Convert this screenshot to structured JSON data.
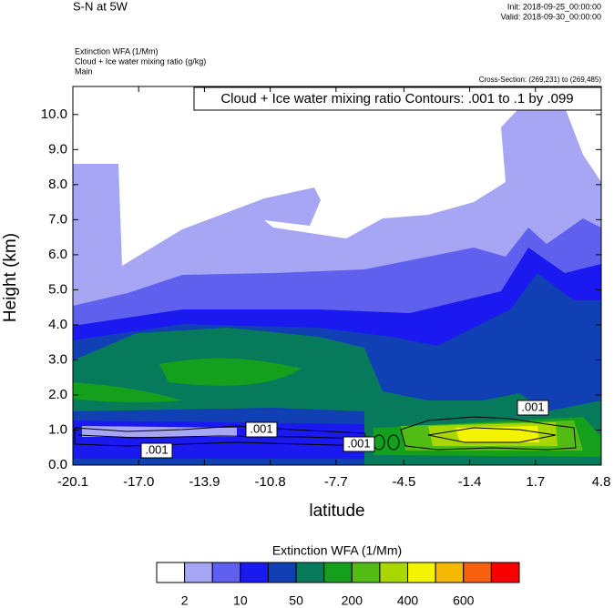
{
  "chart_data": {
    "type": "contour",
    "title": "S-N at 5W",
    "init": "Init: 2018-09-25_00:00:00",
    "valid": "Valid: 2018-09-30_00:00:00",
    "subtitle_lines": [
      "Extinction WFA   (1/Mm)",
      "Cloud + Ice water mixing ratio   (g/kg)",
      "Main"
    ],
    "cross_section": "Cross-Section: (269,231) to (269,485)",
    "annotation": "Cloud + Ice water mixing ratio Contours: .001 to .1 by .099",
    "xlabel": "latitude",
    "ylabel": "Height (km)",
    "xlim": [
      -20.1,
      4.8
    ],
    "xticks": [
      -20.1,
      {
        "value": -17,
        "label": "-17.0"
      },
      -13.9,
      -10.8,
      -7.7,
      -4.5,
      -1.4,
      1.7,
      4.8
    ],
    "ylim": [
      0,
      10.8
    ],
    "yticks": [
      {
        "value": 0,
        "label": "0.0"
      },
      {
        "value": 1,
        "label": "1.0"
      },
      {
        "value": 2,
        "label": "2.0"
      },
      {
        "value": 3,
        "label": "3.0"
      },
      {
        "value": 4,
        "label": "4.0"
      },
      {
        "value": 5,
        "label": "5.0"
      },
      {
        "value": 6,
        "label": "6.0"
      },
      {
        "value": 7,
        "label": "7.0"
      },
      {
        "value": 8,
        "label": "8.0"
      },
      {
        "value": 9,
        "label": "9.0"
      },
      {
        "value": 10,
        "label": "10.0"
      }
    ],
    "contour_labels": [
      ".001",
      ".001",
      ".001",
      ".001"
    ],
    "colorbar_title": "Extinction WFA  (1/Mm)",
    "colors": [
      "#ffffff",
      "#a6a6f4",
      "#6060ee",
      "#1a1af0",
      "#1040b4",
      "#087a5c",
      "#14a01c",
      "#52bc14",
      "#a8d800",
      "#f4f400",
      "#f6b800",
      "#f66010",
      "#f60000"
    ],
    "colorbar_ticks": [
      2,
      10,
      50,
      200,
      400,
      600
    ]
  }
}
